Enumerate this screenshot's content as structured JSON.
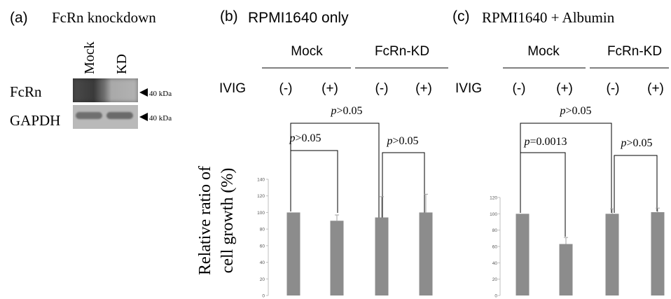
{
  "panel_a": {
    "letter": "(a)",
    "title": "FcRn knockdown",
    "lanes": [
      "Mock",
      "KD"
    ],
    "rows": [
      {
        "label": "FcRn",
        "marker": "40 kDa"
      },
      {
        "label": "GAPDH",
        "marker": "40 kDa"
      }
    ]
  },
  "panel_b": {
    "letter": "(b)",
    "title": "RPMI1640 only",
    "groups": [
      "Mock",
      "FcRn-KD"
    ],
    "ivig_label": "IVIG",
    "ivig_states": [
      "(-)",
      "(+)",
      "(-)",
      "(+)"
    ],
    "comparisons": [
      "p>0.05",
      "p>0.05",
      "p>0.05"
    ]
  },
  "panel_c": {
    "letter": "(c)",
    "title": "RPMI1640 + Albumin",
    "groups": [
      "Mock",
      "FcRn-KD"
    ],
    "ivig_label": "IVIG",
    "ivig_states": [
      "(-)",
      "(+)",
      "(-)",
      "(+)"
    ],
    "comparisons": [
      "p>0.05",
      "p=0.0013",
      "p>0.05"
    ]
  },
  "ylabel": [
    "Relative ratio of",
    "cell growth (%)"
  ],
  "chart_data": [
    {
      "type": "bar",
      "title": "RPMI1640 only",
      "ylabel": "Relative ratio of cell growth (%)",
      "categories": [
        "Mock IVIG (-)",
        "Mock IVIG (+)",
        "FcRn-KD IVIG (-)",
        "FcRn-KD IVIG (+)"
      ],
      "values": [
        100,
        90,
        94,
        100
      ],
      "errors": [
        0,
        7,
        25,
        22
      ],
      "ylim": [
        0,
        140
      ],
      "yticks": [
        0,
        20,
        40,
        60,
        80,
        100,
        120,
        140
      ],
      "bar_color": "#8c8c8c",
      "grid": false
    },
    {
      "type": "bar",
      "title": "RPMI1640 + Albumin",
      "ylabel": "Relative ratio of cell growth (%)",
      "categories": [
        "Mock IVIG (-)",
        "Mock IVIG (+)",
        "FcRn-KD IVIG (-)",
        "FcRn-KD IVIG (+)"
      ],
      "values": [
        100,
        63,
        100,
        102
      ],
      "errors": [
        0,
        8,
        6,
        5
      ],
      "ylim": [
        0,
        120
      ],
      "yticks": [
        0,
        20,
        40,
        60,
        80,
        100,
        120
      ],
      "bar_color": "#8c8c8c",
      "grid": false
    }
  ]
}
